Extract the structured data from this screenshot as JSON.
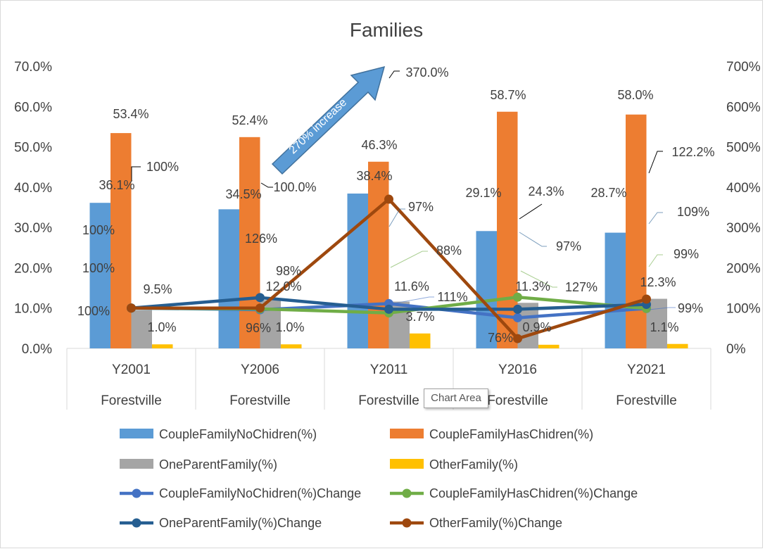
{
  "chart_data": {
    "type": "bar",
    "title": "Families",
    "categories": [
      "Y2001",
      "Y2006",
      "Y2011",
      "Y2016",
      "Y2021"
    ],
    "category_group": [
      "Forestville",
      "Forestville",
      "Forestville",
      "Forestville",
      "Forestville"
    ],
    "y_left": {
      "ticks": [
        "0.0%",
        "10.0%",
        "20.0%",
        "30.0%",
        "40.0%",
        "50.0%",
        "60.0%",
        "70.0%"
      ],
      "ylim": [
        0,
        70
      ]
    },
    "y_right": {
      "ticks": [
        "0%",
        "100%",
        "200%",
        "300%",
        "400%",
        "500%",
        "600%",
        "700%"
      ],
      "ylim": [
        0,
        700
      ]
    },
    "bar_series": [
      {
        "name": "CoupleFamilyNoChidren(%)",
        "color": "#5b9bd5",
        "values": [
          36.1,
          34.5,
          38.4,
          29.1,
          28.7
        ],
        "labels": [
          "36.1%",
          "34.5%",
          "38.4%",
          "29.1%",
          "28.7%"
        ]
      },
      {
        "name": "CoupleFamilyHasChidren(%)",
        "color": "#ed7d31",
        "values": [
          53.4,
          52.4,
          46.3,
          58.7,
          58.0
        ],
        "labels": [
          "53.4%",
          "52.4%",
          "46.3%",
          "58.7%",
          "58.0%"
        ]
      },
      {
        "name": "OneParentFamily(%)",
        "color": "#a5a5a5",
        "values": [
          9.5,
          12.0,
          11.6,
          11.3,
          12.3
        ],
        "labels": [
          "9.5%",
          "12.0%",
          "11.6%",
          "11.3%",
          "12.3%"
        ]
      },
      {
        "name": "OtherFamily(%)",
        "color": "#ffc000",
        "values": [
          1.0,
          1.0,
          3.7,
          0.9,
          1.1
        ],
        "labels": [
          "1.0%",
          "1.0%",
          "3.7%",
          "0.9%",
          "1.1%"
        ]
      }
    ],
    "line_series": [
      {
        "name": "CoupleFamilyNoChidren(%)Change",
        "color": "#4472c4",
        "values": [
          100,
          96,
          111,
          76,
          99
        ],
        "labels": [
          "100%",
          "96%",
          "111%",
          "76%",
          "99%"
        ]
      },
      {
        "name": "CoupleFamilyHasChidren(%)Change",
        "color": "#70ad47",
        "values": [
          100,
          98,
          88,
          127,
          99
        ],
        "labels": [
          "100%",
          "98%",
          "88%",
          "127%",
          "99%"
        ]
      },
      {
        "name": "OneParentFamily(%)Change",
        "color": "#255e91",
        "values": [
          100,
          126,
          97,
          97,
          109
        ],
        "labels": [
          "100%",
          "126%",
          "97%",
          "97%",
          "109%"
        ]
      },
      {
        "name": "OtherFamily(%)Change",
        "color": "#9e480e",
        "values": [
          100,
          100.0,
          370.0,
          24.3,
          122.2
        ],
        "labels": [
          "100%",
          "100.0%",
          "370.0%",
          "24.3%",
          "122.2%"
        ]
      }
    ],
    "annotation": "270% increase",
    "legend": "bottom",
    "grid": false
  },
  "tooltip": "Chart Area"
}
